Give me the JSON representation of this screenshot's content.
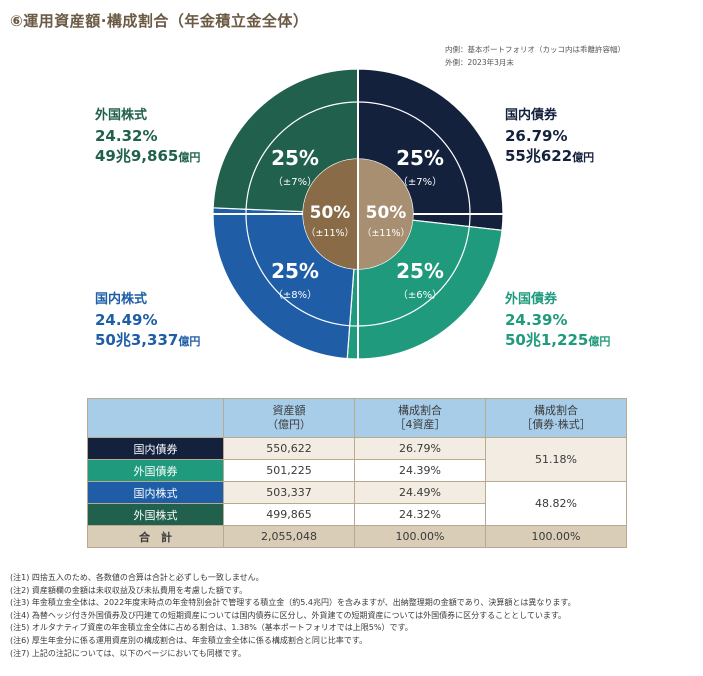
{
  "title": "⑥運用資産額·構成割合（年金積立金全体）",
  "legend_note": {
    "inner": "内側：基本ポートフォリオ（カッコ内は乖離許容幅）",
    "outer": "外側：2023年3月末"
  },
  "colors": {
    "domestic_bonds": "#14213d",
    "foreign_bonds": "#1f9a7c",
    "domestic_equity": "#1f5ea7",
    "foreign_equity": "#20604d",
    "center": "#8a6b48",
    "header_bg": "#a8cde8",
    "total_bg": "#d9cdb8"
  },
  "chart_data": {
    "type": "pie",
    "outer": [
      {
        "name": "国内債券",
        "pct": 26.79,
        "amount": "55兆622",
        "unit": "億円",
        "color": "#14213d"
      },
      {
        "name": "外国債券",
        "pct": 24.39,
        "amount": "50兆1,225",
        "unit": "億円",
        "color": "#1f9a7c"
      },
      {
        "name": "国内株式",
        "pct": 24.49,
        "amount": "50兆3,337",
        "unit": "億円",
        "color": "#1f5ea7"
      },
      {
        "name": "外国株式",
        "pct": 24.32,
        "amount": "49兆9,865",
        "unit": "億円",
        "color": "#20604d"
      }
    ],
    "policy": [
      {
        "name": "国内債券",
        "target": "25%",
        "range": "（±7%）"
      },
      {
        "name": "外国債券",
        "target": "25%",
        "range": "（±6%）"
      },
      {
        "name": "国内株式",
        "target": "25%",
        "range": "（±8%）"
      },
      {
        "name": "外国株式",
        "target": "25%",
        "range": "（±7%）"
      }
    ],
    "center": [
      {
        "target": "50%",
        "range": "（±11%）"
      },
      {
        "target": "50%",
        "range": "（±11%）"
      }
    ]
  },
  "table": {
    "headers": [
      "資産額\n（億円）",
      "構成割合\n［4資産］",
      "構成割合\n［債券·株式］"
    ],
    "rows": [
      {
        "label": "国内債券",
        "amount": "550,622",
        "share4": "26.79%"
      },
      {
        "label": "外国債券",
        "amount": "501,225",
        "share4": "24.39%"
      },
      {
        "label": "国内株式",
        "amount": "503,337",
        "share4": "24.49%"
      },
      {
        "label": "外国株式",
        "amount": "499,865",
        "share4": "24.32%"
      }
    ],
    "bonds_share": "51.18%",
    "equity_share": "48.82%",
    "total": {
      "label": "合　計",
      "amount": "2,055,048",
      "share4": "100.00%",
      "share2": "100.00%"
    }
  },
  "notes": [
    "(注1) 四捨五入のため、各数値の合算は合計と必ずしも一致しません。",
    "(注2) 資産額欄の金額は未収収益及び未払費用を考慮した額です。",
    "(注3) 年金積立金全体は、2022年度末時点の年金特別会計で管理する積立金（約5.4兆円）を含みますが、出納整理期の金額であり、決算額とは異なります。",
    "(注4) 為替ヘッジ付き外国債券及び円建ての短期資産については国内債券に区分し、外貨建ての短期資産については外国債券に区分することとしています。",
    "(注5) オルタナティブ資産の年金積立金全体に占める割合は、1.38%（基本ポートフォリオでは上限5%）です。",
    "(注6) 厚生年金分に係る運用資産別の構成割合は、年金積立金全体に係る構成割合と同じ比率です。",
    "(注7) 上記の注記については、以下のページにおいても同様です。"
  ]
}
